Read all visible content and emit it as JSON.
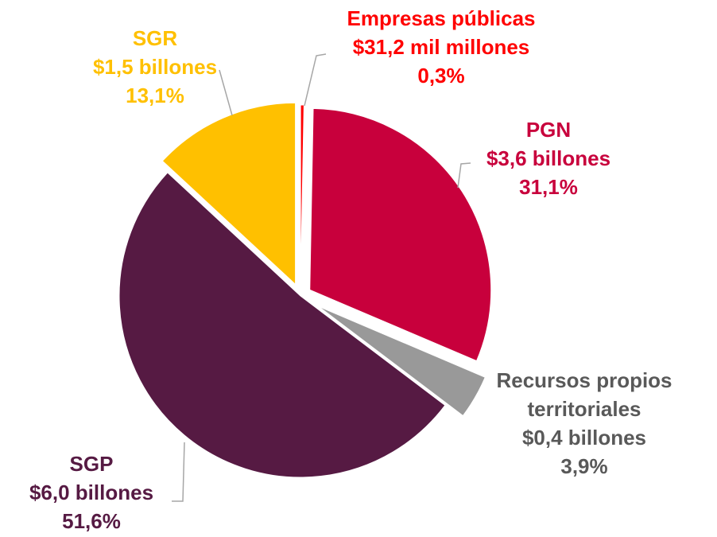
{
  "chart_data": {
    "type": "pie",
    "categories": [
      "Empresas públicas",
      "PGN",
      "Recursos propios territoriales",
      "SGP",
      "SGR"
    ],
    "amounts": [
      "$31,2 mil millones",
      "$3,6 billones",
      "$0,4 billones",
      "$6,0 billones",
      "$1,5 billones"
    ],
    "values": [
      0.3,
      31.1,
      3.9,
      51.6,
      13.1
    ],
    "value_labels": [
      "0,3%",
      "31,1%",
      "3,9%",
      "51,6%",
      "13,1%"
    ],
    "colors": [
      "#ff0000",
      "#c8003c",
      "#999999",
      "#561a43",
      "#ffc000"
    ],
    "label_colors": [
      "#ff0000",
      "#c8003c",
      "#595959",
      "#561a43",
      "#ffc000"
    ]
  }
}
